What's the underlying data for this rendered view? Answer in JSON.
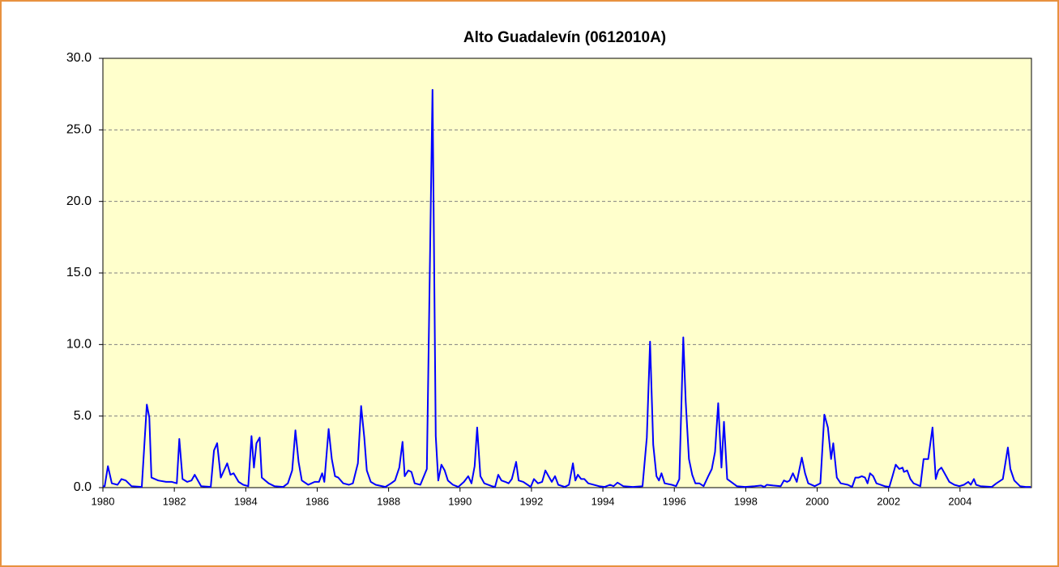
{
  "chart_data": {
    "type": "line",
    "title": "Alto Guadalevín (0612010A)",
    "color": "#0000ff",
    "background": "#ffffcc",
    "grid": true,
    "xlim": [
      1980,
      2006
    ],
    "xticks": [
      1980,
      1982,
      1984,
      1986,
      1988,
      1990,
      1992,
      1994,
      1996,
      1998,
      2000,
      2002,
      2004
    ],
    "ylim": [
      0,
      30
    ],
    "yticks": [
      {
        "value": 0,
        "label": "0.0"
      },
      {
        "value": 5,
        "label": "5.0"
      },
      {
        "value": 10,
        "label": "10.0"
      },
      {
        "value": 15,
        "label": "15.0"
      },
      {
        "value": 20,
        "label": "20.0"
      },
      {
        "value": 25,
        "label": "25.0"
      },
      {
        "value": 30,
        "label": "30.0"
      }
    ],
    "x": [
      1980.0,
      1980.05,
      1980.14,
      1980.25,
      1980.41,
      1980.52,
      1980.64,
      1980.8,
      1981.09,
      1981.23,
      1981.3,
      1981.36,
      1981.55,
      1981.77,
      1981.93,
      1982.07,
      1982.14,
      1982.23,
      1982.36,
      1982.48,
      1982.57,
      1982.75,
      1983.02,
      1983.11,
      1983.2,
      1983.3,
      1983.48,
      1983.57,
      1983.66,
      1983.8,
      1983.93,
      1984.07,
      1984.16,
      1984.23,
      1984.3,
      1984.39,
      1984.45,
      1984.64,
      1984.8,
      1985.05,
      1985.18,
      1985.3,
      1985.39,
      1985.48,
      1985.57,
      1985.75,
      1985.93,
      1986.05,
      1986.14,
      1986.2,
      1986.32,
      1986.41,
      1986.5,
      1986.59,
      1986.73,
      1986.89,
      1987.0,
      1987.14,
      1987.23,
      1987.32,
      1987.39,
      1987.5,
      1987.64,
      1987.91,
      1988.07,
      1988.18,
      1988.3,
      1988.39,
      1988.45,
      1988.55,
      1988.64,
      1988.73,
      1988.89,
      1989.07,
      1989.23,
      1989.32,
      1989.39,
      1989.48,
      1989.57,
      1989.66,
      1989.8,
      1989.95,
      1990.11,
      1990.23,
      1990.32,
      1990.41,
      1990.48,
      1990.57,
      1990.68,
      1990.89,
      1990.98,
      1991.07,
      1991.16,
      1991.27,
      1991.36,
      1991.45,
      1991.57,
      1991.64,
      1991.77,
      1991.89,
      1991.98,
      1992.07,
      1992.18,
      1992.3,
      1992.39,
      1992.5,
      1992.57,
      1992.66,
      1992.75,
      1992.93,
      1993.05,
      1993.16,
      1993.23,
      1993.3,
      1993.39,
      1993.48,
      1993.59,
      1993.89,
      1994.05,
      1994.2,
      1994.3,
      1994.41,
      1994.57,
      1994.84,
      1995.11,
      1995.23,
      1995.32,
      1995.41,
      1995.5,
      1995.57,
      1995.64,
      1995.73,
      1995.93,
      1996.05,
      1996.14,
      1996.25,
      1996.32,
      1996.41,
      1996.5,
      1996.59,
      1996.7,
      1996.82,
      1996.95,
      1997.05,
      1997.14,
      1997.23,
      1997.32,
      1997.39,
      1997.48,
      1997.59,
      1997.75,
      1997.98,
      1998.25,
      1998.43,
      1998.52,
      1998.59,
      1998.77,
      1998.98,
      1999.07,
      1999.16,
      1999.23,
      1999.32,
      1999.43,
      1999.57,
      1999.66,
      1999.75,
      1999.93,
      2000.09,
      2000.2,
      2000.3,
      2000.39,
      2000.45,
      2000.55,
      2000.66,
      2000.86,
      2000.98,
      2001.07,
      2001.16,
      2001.25,
      2001.34,
      2001.41,
      2001.48,
      2001.57,
      2001.66,
      2001.89,
      2002.02,
      2002.11,
      2002.2,
      2002.3,
      2002.39,
      2002.43,
      2002.52,
      2002.61,
      2002.7,
      2002.89,
      2002.98,
      2003.11,
      2003.23,
      2003.32,
      2003.39,
      2003.48,
      2003.59,
      2003.7,
      2003.84,
      2003.98,
      2004.11,
      2004.23,
      2004.3,
      2004.39,
      2004.45,
      2004.57,
      2004.89,
      2005.02,
      2005.2,
      2005.34,
      2005.41,
      2005.52,
      2005.68,
      2005.84,
      2005.98
    ],
    "values": [
      0.1,
      0.1,
      1.5,
      0.3,
      0.2,
      0.6,
      0.5,
      0.1,
      0.05,
      5.8,
      4.9,
      0.7,
      0.5,
      0.4,
      0.4,
      0.3,
      3.4,
      0.6,
      0.4,
      0.5,
      0.9,
      0.1,
      0.05,
      2.6,
      3.1,
      0.7,
      1.7,
      0.9,
      1.0,
      0.4,
      0.2,
      0.1,
      3.6,
      1.4,
      3.1,
      3.5,
      0.7,
      0.3,
      0.1,
      0.05,
      0.3,
      1.2,
      4.0,
      1.8,
      0.5,
      0.2,
      0.4,
      0.4,
      1.0,
      0.4,
      4.1,
      2.0,
      0.8,
      0.7,
      0.3,
      0.2,
      0.3,
      1.7,
      5.7,
      3.5,
      1.2,
      0.4,
      0.2,
      0.05,
      0.3,
      0.5,
      1.4,
      3.2,
      0.8,
      1.2,
      1.1,
      0.3,
      0.2,
      1.3,
      27.8,
      3.6,
      0.5,
      1.6,
      1.2,
      0.5,
      0.2,
      0.05,
      0.4,
      0.8,
      0.3,
      1.5,
      4.2,
      0.8,
      0.3,
      0.1,
      0.05,
      0.9,
      0.5,
      0.4,
      0.3,
      0.6,
      1.8,
      0.5,
      0.4,
      0.2,
      0.05,
      0.6,
      0.3,
      0.4,
      1.2,
      0.7,
      0.4,
      0.8,
      0.2,
      0.05,
      0.2,
      1.7,
      0.5,
      0.9,
      0.6,
      0.6,
      0.3,
      0.1,
      0.05,
      0.2,
      0.1,
      0.35,
      0.1,
      0.05,
      0.1,
      3.5,
      10.2,
      3.0,
      0.8,
      0.5,
      1.0,
      0.3,
      0.2,
      0.1,
      0.6,
      10.5,
      6.0,
      2.0,
      0.9,
      0.3,
      0.3,
      0.1,
      0.8,
      1.3,
      2.5,
      5.9,
      1.4,
      4.6,
      0.6,
      0.4,
      0.1,
      0.05,
      0.1,
      0.15,
      0.05,
      0.2,
      0.15,
      0.1,
      0.5,
      0.4,
      0.5,
      1.0,
      0.4,
      2.1,
      1.0,
      0.3,
      0.1,
      0.3,
      5.1,
      4.2,
      2.0,
      3.1,
      0.7,
      0.3,
      0.2,
      0.05,
      0.7,
      0.7,
      0.8,
      0.7,
      0.3,
      1.0,
      0.8,
      0.3,
      0.1,
      0.05,
      0.8,
      1.6,
      1.3,
      1.4,
      1.1,
      1.2,
      0.6,
      0.3,
      0.1,
      2.0,
      2.0,
      4.2,
      0.6,
      1.2,
      1.4,
      0.9,
      0.4,
      0.2,
      0.1,
      0.2,
      0.4,
      0.2,
      0.6,
      0.2,
      0.1,
      0.05,
      0.3,
      0.6,
      2.8,
      1.3,
      0.5,
      0.1,
      0.05,
      0.05
    ]
  }
}
